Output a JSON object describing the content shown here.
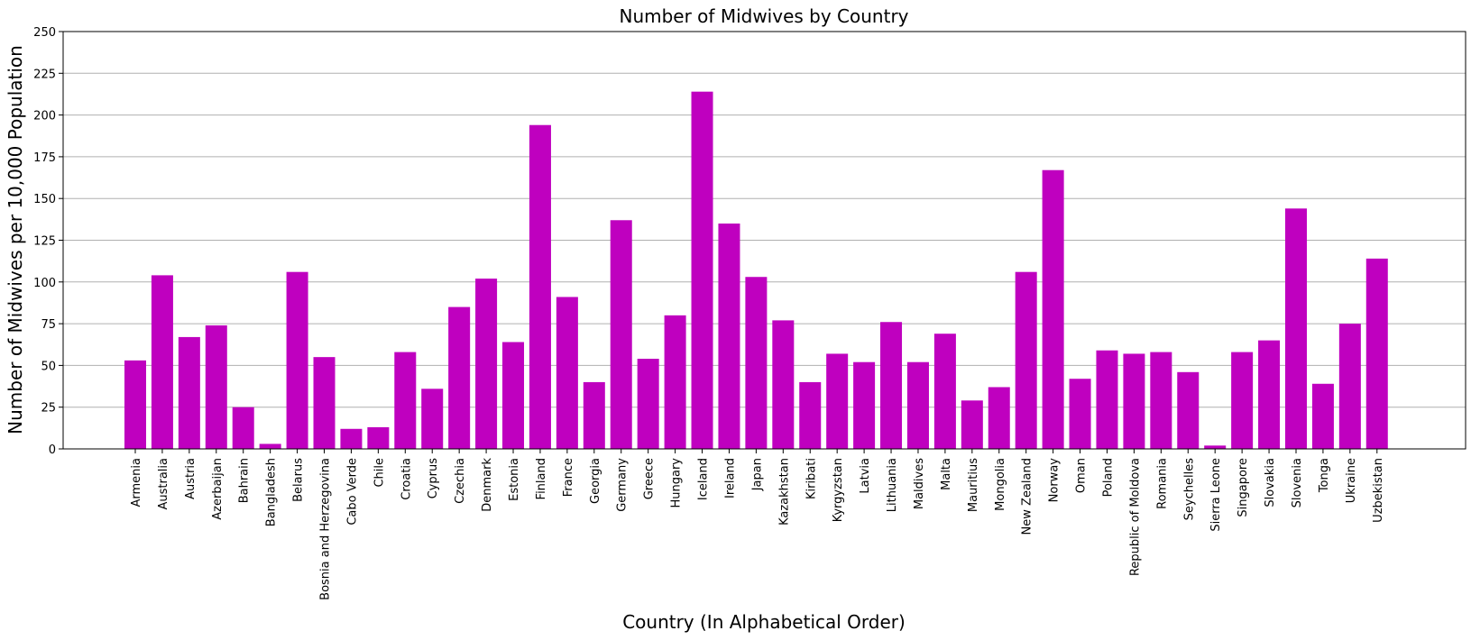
{
  "chart_data": {
    "type": "bar",
    "title": "Number of Midwives by Country",
    "xlabel": "Country (In Alphabetical Order)",
    "ylabel": "Number of Midwives per 10,000 Population",
    "ylim": [
      0,
      250
    ],
    "yticks": [
      0,
      25,
      50,
      75,
      100,
      125,
      150,
      175,
      200,
      225,
      250
    ],
    "grid": "y",
    "bar_color": "#bf00bf",
    "categories": [
      "Armenia",
      "Australia",
      "Austria",
      "Azerbaijan",
      "Bahrain",
      "Bangladesh",
      "Belarus",
      "Bosnia and Herzegovina",
      "Cabo Verde",
      "Chile",
      "Croatia",
      "Cyprus",
      "Czechia",
      "Denmark",
      "Estonia",
      "Finland",
      "France",
      "Georgia",
      "Germany",
      "Greece",
      "Hungary",
      "Iceland",
      "Ireland",
      "Japan",
      "Kazakhstan",
      "Kiribati",
      "Kyrgyzstan",
      "Latvia",
      "Lithuania",
      "Maldives",
      "Malta",
      "Mauritius",
      "Mongolia",
      "New Zealand",
      "Norway",
      "Oman",
      "Poland",
      "Republic of Moldova",
      "Romania",
      "Seychelles",
      "Sierra Leone",
      "Singapore",
      "Slovakia",
      "Slovenia",
      "Tonga",
      "Ukraine",
      "Uzbekistan"
    ],
    "values": [
      53,
      104,
      67,
      74,
      25,
      3,
      106,
      55,
      12,
      13,
      58,
      36,
      85,
      102,
      64,
      194,
      91,
      40,
      137,
      54,
      80,
      214,
      135,
      103,
      77,
      40,
      57,
      52,
      76,
      52,
      69,
      29,
      37,
      106,
      167,
      42,
      59,
      57,
      58,
      46,
      2,
      58,
      65,
      144,
      39,
      75,
      114
    ]
  }
}
